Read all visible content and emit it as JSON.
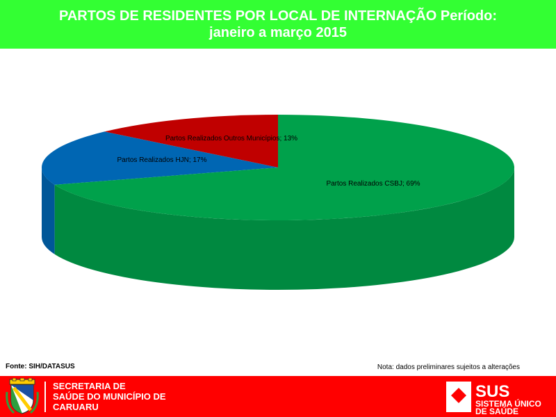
{
  "title": {
    "line1": "PARTOS DE RESIDENTES POR LOCAL DE INTERNAÇÃO Período:",
    "line2": "janeiro a março 2015"
  },
  "chart_data": {
    "type": "pie",
    "title": "PARTOS DE RESIDENTES POR LOCAL DE INTERNAÇÃO Período: janeiro a março 2015",
    "slices": [
      {
        "label": "Partos Realizados Outros Municípios",
        "value": 13,
        "display": "Partos Realizados Outros Municípios; 13%",
        "color": "#c00000"
      },
      {
        "label": "Partos Realizados HJN",
        "value": 17,
        "display": "Partos Realizados HJN; 17%",
        "color": "#0066b3"
      },
      {
        "label": "Partos Realizados CSBJ",
        "value": 69,
        "display": "Partos Realizados CSBJ; 69%",
        "color": "#00a14b"
      }
    ],
    "unit": "%",
    "legend": "none",
    "style": "3d"
  },
  "footer": {
    "source": "Fonte: SIH/DATASUS",
    "note": "Nota: dados preliminares sujeitos a alterações",
    "org_line1": "SECRETARIA DE",
    "org_line2": "SAÚDE DO MUNICÍPIO DE",
    "org_line3": "CARUARU",
    "sus_logo_text": "SUS",
    "sus_line1": "SISTEMA ÚNICO",
    "sus_line2": "DE SAÚDE",
    "band_color": "#ff0000",
    "title_band_color": "#33ff33"
  }
}
